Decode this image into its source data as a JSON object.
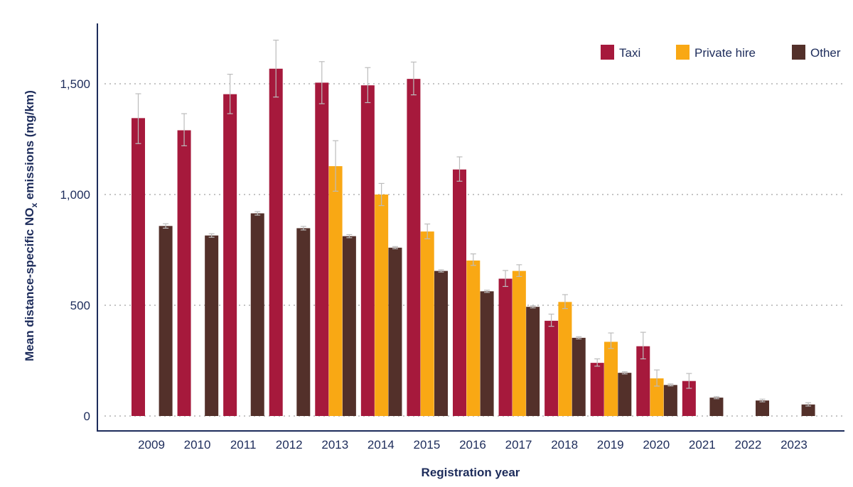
{
  "chart_data": {
    "type": "bar",
    "xlabel": "Registration year",
    "ylabel_main": "Mean distance-specific NO",
    "ylabel_sub": "x",
    "ylabel_tail": " emissions (mg/km)",
    "ylim": [
      0,
      1750
    ],
    "yticks": [
      0,
      500,
      1000,
      1500
    ],
    "ytick_labels": [
      "0",
      "500",
      "1,000",
      "1,500"
    ],
    "grid": "horizontal dotted",
    "legend_position": "top-right",
    "categories": [
      "2009",
      "2010",
      "2011",
      "2012",
      "2013",
      "2014",
      "2015",
      "2016",
      "2017",
      "2018",
      "2019",
      "2020",
      "2021",
      "2022",
      "2023"
    ],
    "series": [
      {
        "name": "Taxi",
        "color": "#a6193c",
        "values": [
          1345,
          1290,
          1453,
          1568,
          1505,
          1493,
          1522,
          1113,
          620,
          430,
          240,
          315,
          158,
          null,
          null
        ],
        "err_low": [
          1230,
          1220,
          1365,
          1440,
          1410,
          1415,
          1450,
          1060,
          585,
          405,
          225,
          258,
          125,
          null,
          null
        ],
        "err_high": [
          1455,
          1365,
          1543,
          1697,
          1600,
          1573,
          1598,
          1170,
          657,
          460,
          258,
          378,
          192,
          null,
          null
        ]
      },
      {
        "name": "Private hire",
        "color": "#f9a814",
        "values": [
          null,
          null,
          null,
          null,
          1128,
          1000,
          833,
          702,
          655,
          515,
          335,
          170,
          null,
          null,
          null
        ],
        "err_low": [
          null,
          null,
          null,
          null,
          1015,
          950,
          800,
          680,
          630,
          485,
          305,
          135,
          null,
          null,
          null
        ],
        "err_high": [
          null,
          null,
          null,
          null,
          1243,
          1050,
          867,
          732,
          683,
          548,
          375,
          208,
          null,
          null,
          null
        ]
      },
      {
        "name": "Other",
        "color": "#53302a",
        "values": [
          858,
          815,
          915,
          848,
          812,
          760,
          655,
          563,
          493,
          353,
          195,
          140,
          83,
          70,
          52
        ],
        "err_low": [
          848,
          807,
          907,
          840,
          805,
          755,
          650,
          558,
          488,
          348,
          190,
          136,
          78,
          64,
          45
        ],
        "err_high": [
          868,
          823,
          923,
          856,
          819,
          765,
          660,
          568,
          498,
          358,
          200,
          145,
          88,
          76,
          60
        ]
      }
    ]
  }
}
